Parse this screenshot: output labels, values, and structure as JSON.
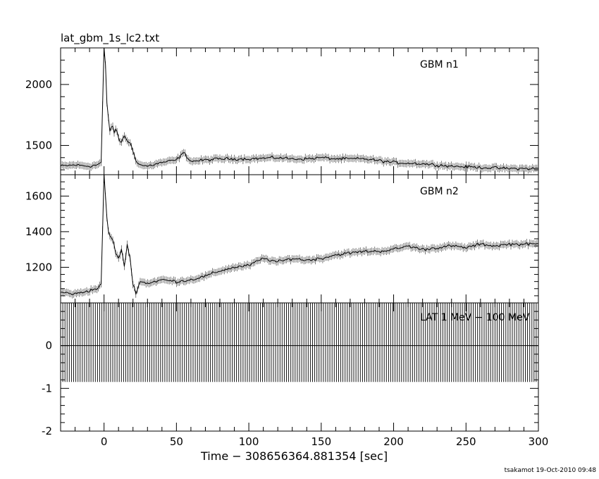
{
  "figure": {
    "title": "lat_gbm_1s_lc2.txt",
    "xlabel": "Time − 308656364.881354 [sec]",
    "footer": "tsakamot 19-Oct-2010 09:48"
  },
  "chart_data": [
    {
      "type": "line",
      "label": "GBM n1",
      "xlim": [
        -30,
        300
      ],
      "ylim": [
        1260,
        2300
      ],
      "yticks": [
        1500,
        2000
      ],
      "xticks": [
        0,
        50,
        100,
        150,
        200,
        250,
        300
      ],
      "x_tick_labels_shown": false,
      "grid": false,
      "series": [
        {
          "x": [
            -30,
            -20,
            -10,
            -5,
            -2,
            0,
            1,
            2,
            3,
            4,
            5,
            6,
            7,
            8,
            10,
            12,
            14,
            16,
            18,
            20,
            22,
            25,
            30,
            40,
            50,
            55,
            60,
            70,
            80,
            100,
            120,
            130,
            140,
            150,
            160,
            180,
            200,
            220,
            240,
            260,
            280,
            300
          ],
          "values": [
            1330,
            1340,
            1330,
            1340,
            1360,
            2300,
            2150,
            1850,
            1720,
            1620,
            1650,
            1660,
            1600,
            1640,
            1560,
            1520,
            1580,
            1540,
            1520,
            1450,
            1380,
            1340,
            1330,
            1360,
            1380,
            1440,
            1370,
            1380,
            1390,
            1390,
            1400,
            1390,
            1390,
            1400,
            1390,
            1390,
            1360,
            1350,
            1330,
            1320,
            1310,
            1310
          ]
        }
      ]
    },
    {
      "type": "line",
      "label": "GBM n2",
      "xlim": [
        -30,
        300
      ],
      "ylim": [
        1000,
        1720
      ],
      "yticks": [
        1200,
        1400,
        1600
      ],
      "xticks": [
        0,
        50,
        100,
        150,
        200,
        250,
        300
      ],
      "x_tick_labels_shown": false,
      "grid": false,
      "series": [
        {
          "x": [
            -30,
            -20,
            -10,
            -5,
            -2,
            0,
            1,
            2,
            3,
            4,
            5,
            6,
            8,
            10,
            12,
            14,
            16,
            18,
            20,
            22,
            25,
            30,
            40,
            50,
            60,
            70,
            80,
            90,
            100,
            110,
            120,
            130,
            140,
            150,
            160,
            170,
            180,
            190,
            200,
            210,
            220,
            230,
            240,
            250,
            260,
            270,
            280,
            290,
            300
          ],
          "values": [
            1060,
            1050,
            1070,
            1080,
            1100,
            1720,
            1600,
            1480,
            1400,
            1380,
            1360,
            1360,
            1280,
            1250,
            1300,
            1200,
            1330,
            1250,
            1100,
            1060,
            1120,
            1110,
            1130,
            1120,
            1130,
            1150,
            1180,
            1200,
            1210,
            1250,
            1230,
            1250,
            1240,
            1250,
            1270,
            1280,
            1290,
            1290,
            1300,
            1320,
            1300,
            1310,
            1320,
            1310,
            1330,
            1320,
            1330,
            1330,
            1330
          ]
        }
      ]
    },
    {
      "type": "line",
      "label": "LAT 1 MeV − 100 MeV",
      "xlim": [
        -30,
        300
      ],
      "ylim": [
        -2,
        1
      ],
      "yticks": [
        -2,
        -1,
        0
      ],
      "xticks": [
        0,
        50,
        100,
        150,
        200,
        250,
        300
      ],
      "x_tick_labels_shown": true,
      "grid": false,
      "series": [
        {
          "x": [
            -30,
            300
          ],
          "values": [
            0,
            0
          ]
        }
      ],
      "error_band": {
        "upper": 1,
        "lower": -0.85,
        "bin_width": 1
      }
    }
  ]
}
